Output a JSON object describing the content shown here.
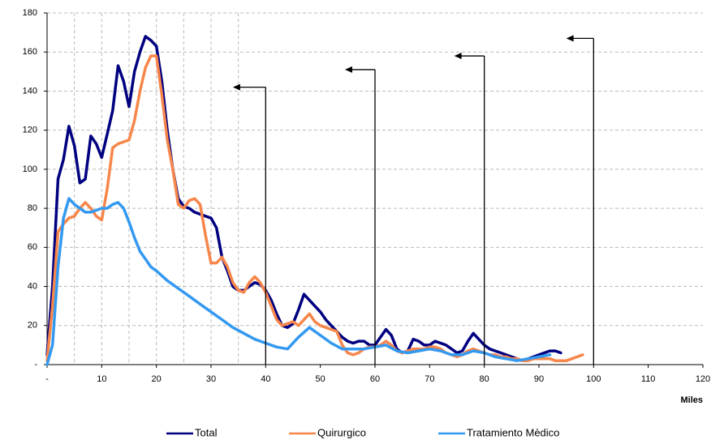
{
  "chart_data": {
    "type": "line",
    "xlabel": "Miles",
    "xlim": [
      0,
      120
    ],
    "xticks": [
      {
        "value": 0,
        "label": "-"
      },
      10,
      20,
      30,
      40,
      50,
      60,
      70,
      80,
      90,
      100,
      110,
      120
    ],
    "ylim": [
      0,
      180
    ],
    "yticks": [
      {
        "value": 0,
        "label": "-"
      },
      20,
      40,
      60,
      80,
      100,
      120,
      140,
      160,
      180
    ],
    "grid": true,
    "vgrid": [
      5,
      10,
      15,
      20,
      25,
      30,
      35
    ],
    "arrows": [
      {
        "x": 40,
        "top": 142,
        "to": 34
      },
      {
        "x": 60,
        "top": 151,
        "to": 54.5
      },
      {
        "x": 80,
        "top": 158,
        "to": 74.5
      },
      {
        "x": 100,
        "top": 167,
        "to": 95
      }
    ],
    "series": [
      {
        "name": "Total",
        "color": "#000080",
        "x": [
          0,
          1,
          2,
          3,
          4,
          5,
          6,
          7,
          8,
          9,
          10,
          11,
          12,
          13,
          14,
          15,
          16,
          17,
          18,
          19,
          20,
          21,
          22,
          23,
          24,
          25,
          26,
          27,
          28,
          29,
          30,
          31,
          32,
          33,
          34,
          35,
          36,
          37,
          38,
          39,
          40,
          41,
          42,
          43,
          44,
          45,
          46,
          47,
          48,
          49,
          50,
          51,
          52,
          53,
          54,
          55,
          56,
          57,
          58,
          59,
          60,
          61,
          62,
          63,
          64,
          65,
          66,
          67,
          68,
          69,
          70,
          71,
          72,
          73,
          74,
          75,
          76,
          77,
          78,
          79,
          80,
          81,
          82,
          83,
          84,
          85,
          86,
          87,
          88,
          89,
          90,
          91,
          92,
          93,
          94
        ],
        "values": [
          5,
          40,
          95,
          105,
          122,
          112,
          93,
          95,
          117,
          113,
          106,
          118,
          130,
          153,
          145,
          132,
          150,
          160,
          168,
          166,
          163,
          145,
          120,
          100,
          85,
          81,
          80,
          78,
          77,
          76,
          75,
          70,
          55,
          48,
          40,
          38,
          38,
          40,
          42,
          41,
          38,
          33,
          26,
          20,
          19,
          21,
          28,
          36,
          33,
          30,
          27,
          23,
          20,
          17,
          14,
          12,
          11,
          12,
          12,
          10,
          10,
          14,
          18,
          15,
          8,
          6,
          7,
          13,
          12,
          10,
          10,
          12,
          11,
          10,
          8,
          6,
          7,
          12,
          16,
          13,
          10,
          8,
          7,
          6,
          5,
          4,
          3,
          2,
          3,
          4,
          5,
          6,
          7,
          7,
          6
        ]
      },
      {
        "name": "Quirurgico",
        "color": "#f7864b",
        "x": [
          0,
          1,
          2,
          3,
          4,
          5,
          6,
          7,
          8,
          9,
          10,
          11,
          12,
          13,
          14,
          15,
          16,
          17,
          18,
          19,
          20,
          21,
          22,
          23,
          24,
          25,
          26,
          27,
          28,
          29,
          30,
          31,
          32,
          33,
          34,
          35,
          36,
          37,
          38,
          39,
          40,
          41,
          42,
          43,
          44,
          45,
          46,
          47,
          48,
          49,
          50,
          51,
          52,
          53,
          54,
          55,
          56,
          57,
          58,
          59,
          60,
          61,
          62,
          63,
          64,
          65,
          66,
          67,
          68,
          69,
          70,
          71,
          72,
          73,
          74,
          75,
          76,
          77,
          78,
          79,
          80,
          81,
          82,
          83,
          84,
          85,
          86,
          87,
          88,
          89,
          90,
          91,
          92,
          93,
          94,
          95,
          96,
          97,
          98
        ],
        "values": [
          2,
          30,
          68,
          72,
          75,
          76,
          80,
          83,
          80,
          76,
          74,
          90,
          111,
          113,
          114,
          115,
          125,
          140,
          152,
          158,
          158,
          138,
          115,
          100,
          82,
          80,
          84,
          85,
          82,
          66,
          52,
          52,
          55,
          50,
          42,
          38,
          37,
          42,
          45,
          42,
          37,
          30,
          23,
          20,
          21,
          22,
          20,
          23,
          26,
          22,
          20,
          19,
          18,
          17,
          10,
          6,
          5,
          6,
          8,
          9,
          9,
          10,
          12,
          10,
          7,
          6,
          7,
          8,
          8,
          8,
          9,
          9,
          8,
          6,
          5,
          4,
          5,
          7,
          8,
          7,
          6,
          5,
          5,
          4,
          4,
          3,
          3,
          2,
          2,
          3,
          3,
          3,
          3,
          2,
          2,
          2,
          3,
          4,
          5
        ]
      },
      {
        "name": "Tratamiento Mèdico",
        "color": "#3399f0",
        "x": [
          0,
          1,
          2,
          3,
          4,
          5,
          6,
          7,
          8,
          9,
          10,
          11,
          12,
          13,
          14,
          15,
          16,
          17,
          18,
          19,
          20,
          22,
          24,
          26,
          28,
          30,
          32,
          34,
          36,
          38,
          40,
          42,
          44,
          46,
          48,
          50,
          52,
          54,
          56,
          58,
          60,
          62,
          64,
          66,
          68,
          70,
          72,
          74,
          76,
          78,
          80,
          82,
          84,
          86,
          88,
          90,
          92
        ],
        "values": [
          0,
          10,
          50,
          75,
          85,
          82,
          80,
          78,
          78,
          79,
          80,
          80,
          82,
          83,
          80,
          73,
          65,
          58,
          54,
          50,
          48,
          43,
          39,
          35,
          31,
          27,
          23,
          19,
          16,
          13,
          11,
          9,
          8,
          14,
          19,
          15,
          11,
          8,
          8,
          8,
          9,
          10,
          7,
          6,
          7,
          8,
          7,
          5,
          5,
          7,
          6,
          4,
          3,
          2,
          3,
          4,
          5
        ]
      }
    ]
  }
}
